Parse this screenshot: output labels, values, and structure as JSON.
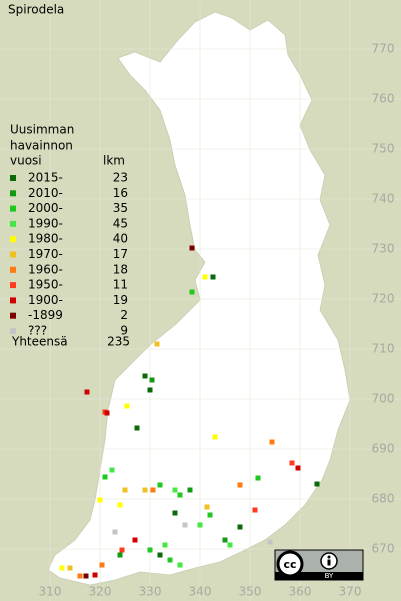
{
  "chart_data": {
    "type": "grid-map",
    "title": "Spirodela",
    "legend_title": [
      "Uusimman",
      "havainnon",
      "vuosi"
    ],
    "count_header": "lkm",
    "total_label": "Yhteensä",
    "total": 235,
    "xlim": [
      300,
      380.2
    ],
    "ylim": [
      659.6,
      779.8
    ],
    "xticks": [
      310,
      320,
      330,
      340,
      350,
      360,
      370
    ],
    "yticks": [
      670,
      680,
      690,
      700,
      710,
      720,
      730,
      740,
      750,
      760,
      770
    ],
    "grid": true,
    "series": [
      {
        "name": "2015-",
        "count": 23,
        "color": "#0a6a0a",
        "x": [
          342.6,
          363.4,
          329,
          327.4,
          335,
          348,
          332,
          330
        ],
        "y": [
          724.4,
          683,
          704.6,
          694.2,
          677.2,
          674.4,
          668.8,
          701.8
        ]
      },
      {
        "name": "2010-",
        "count": 16,
        "color": "#129a12",
        "x": [
          330.4,
          338,
          345,
          324
        ],
        "y": [
          703.8,
          681.8,
          671.8,
          668.8
        ]
      },
      {
        "name": "2000-",
        "count": 35,
        "color": "#1ec81e",
        "x": [
          338.4,
          336,
          332,
          342,
          330,
          334,
          321,
          351.6
        ],
        "y": [
          721.4,
          680.8,
          682.8,
          676.8,
          669.8,
          667.8,
          684.4,
          684.2
        ]
      },
      {
        "name": "1990-",
        "count": 45,
        "color": "#44e844",
        "x": [
          322.4,
          335,
          340,
          333,
          336,
          346
        ],
        "y": [
          685.8,
          681.8,
          674.8,
          670.8,
          666.8,
          670.8
        ]
      },
      {
        "name": "1980-",
        "count": 40,
        "color": "#ffff00",
        "x": [
          341,
          325.4,
          343,
          320,
          312.4,
          324
        ],
        "y": [
          724.4,
          698.6,
          692.4,
          679.8,
          666.2,
          678.8
        ]
      },
      {
        "name": "1970-",
        "count": 17,
        "color": "#f0c020",
        "x": [
          331.4,
          314,
          329,
          341.4,
          325
        ],
        "y": [
          711,
          666.2,
          681.8,
          678.4,
          681.8
        ]
      },
      {
        "name": "1960-",
        "count": 18,
        "color": "#ff7a10",
        "x": [
          354.4,
          320.4,
          316,
          330.6,
          348
        ],
        "y": [
          691.4,
          666.8,
          664.6,
          681.8,
          682.8
        ]
      },
      {
        "name": "1950-",
        "count": 11,
        "color": "#ff3a1e",
        "x": [
          358.4,
          321,
          324.4,
          351
        ],
        "y": [
          687.2,
          697.4,
          669.8,
          677.8
        ]
      },
      {
        "name": "1900-",
        "count": 19,
        "color": "#d00000",
        "x": [
          317.4,
          359.6,
          327,
          319,
          321.4
        ],
        "y": [
          701.4,
          686.2,
          671.8,
          664.8,
          697.2
        ]
      },
      {
        "name": "-1899",
        "count": 2,
        "color": "#7a0000",
        "x": [
          338.4,
          317.2
        ],
        "y": [
          730.2,
          664.6
        ]
      },
      {
        "name": "???",
        "count": 9,
        "color": "#c4c4c4",
        "x": [
          354,
          337,
          323
        ],
        "y": [
          671.4,
          674.8,
          673.4
        ]
      }
    ],
    "license_badge": {
      "icon": "cc",
      "label": "BY"
    }
  }
}
